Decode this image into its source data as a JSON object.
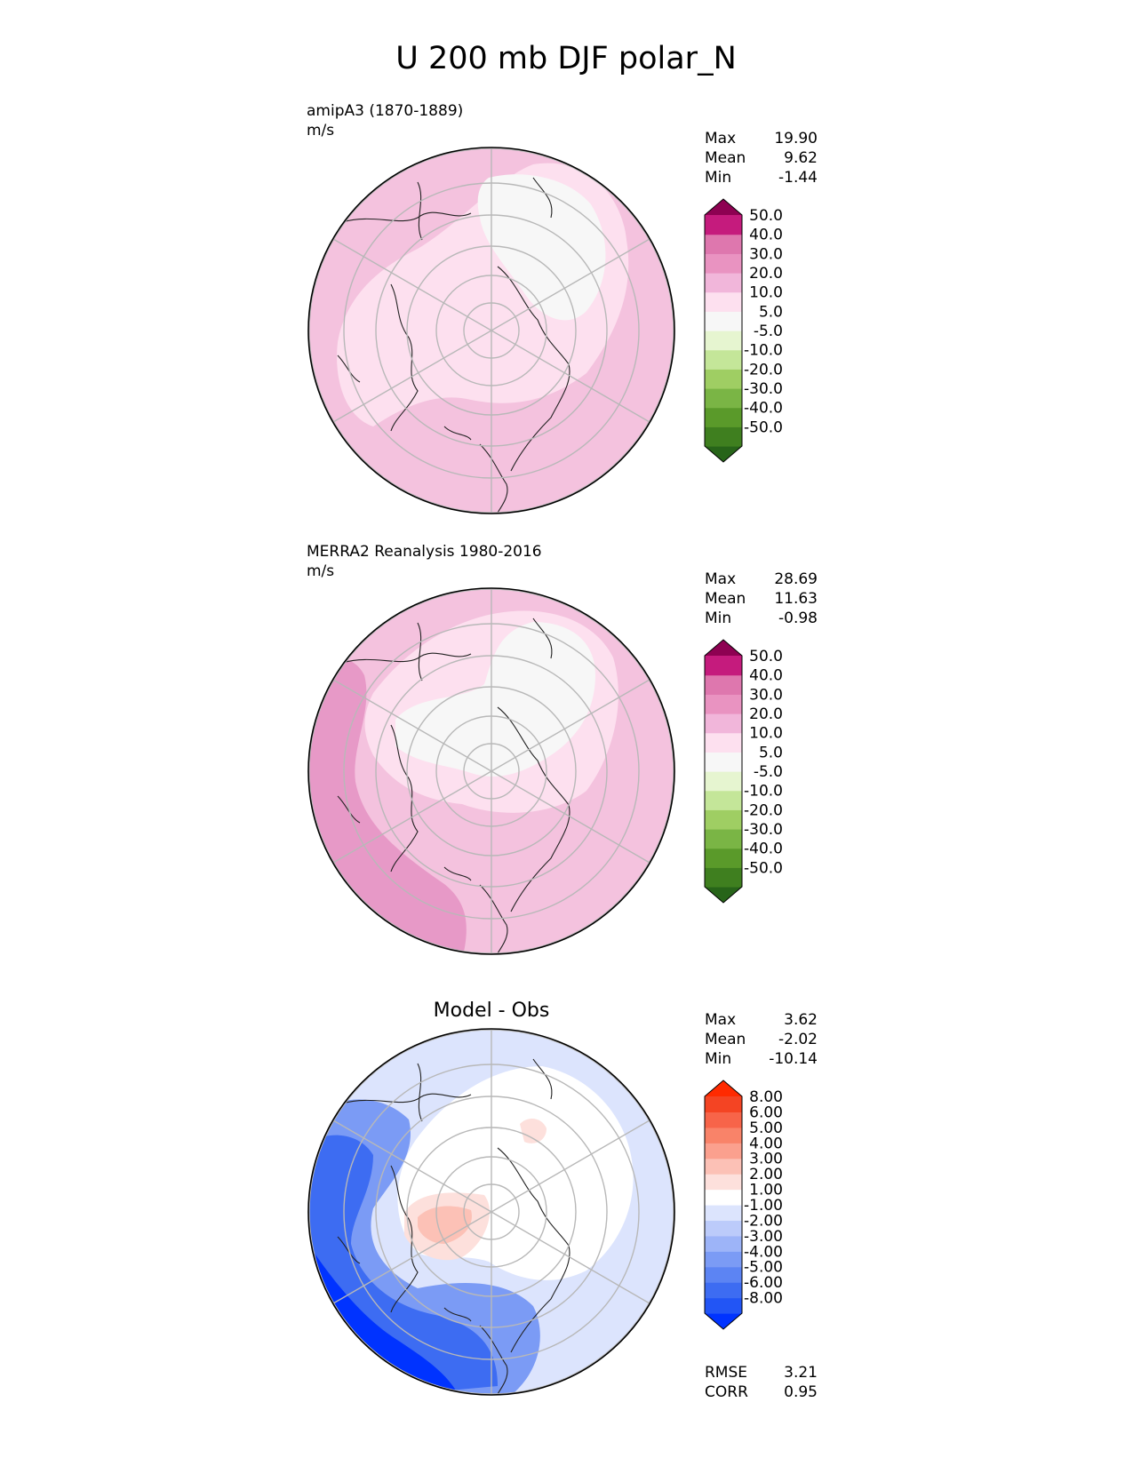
{
  "page_title": "U 200 mb DJF polar_N",
  "chart_data": [
    {
      "type": "heatmap",
      "projection": "north-polar-stereographic",
      "title": "",
      "dataset_label": "amipA3 (1870-1889)",
      "units": "m/s",
      "stats": [
        {
          "label": "Max",
          "value": "19.90"
        },
        {
          "label": "Mean",
          "value": "9.62"
        },
        {
          "label": "Min",
          "value": "-1.44"
        }
      ],
      "colorbar": {
        "extend": "both",
        "over_color": "#8e0152",
        "under_color": "#276419",
        "colors": [
          "#276419",
          "#3f7f1f",
          "#5a9a2a",
          "#7ab545",
          "#9fce63",
          "#c4e699",
          "#e6f5d0",
          "#f7f7f7",
          "#fde0ef",
          "#f1b6da",
          "#e993c1",
          "#de77ae",
          "#c51b7d",
          "#8e0152"
        ],
        "tick_labels": [
          "-50.0",
          "-40.0",
          "-30.0",
          "-20.0",
          "-10.0",
          "-5.0",
          "5.0",
          "10.0",
          "20.0",
          "30.0",
          "40.0",
          "50.0"
        ]
      },
      "field_fill": [
        {
          "range": "5 to 10",
          "color": "#fde0ef"
        },
        {
          "range": "10 to 20",
          "color": "#f4c2de"
        },
        {
          "range": "-5 to 5",
          "color": "#f7f7f7"
        }
      ]
    },
    {
      "type": "heatmap",
      "projection": "north-polar-stereographic",
      "title": "",
      "dataset_label": "MERRA2 Reanalysis 1980-2016",
      "units": "m/s",
      "stats": [
        {
          "label": "Max",
          "value": "28.69"
        },
        {
          "label": "Mean",
          "value": "11.63"
        },
        {
          "label": "Min",
          "value": "-0.98"
        }
      ],
      "colorbar": {
        "extend": "both",
        "over_color": "#8e0152",
        "under_color": "#276419",
        "colors": [
          "#276419",
          "#3f7f1f",
          "#5a9a2a",
          "#7ab545",
          "#9fce63",
          "#c4e699",
          "#e6f5d0",
          "#f7f7f7",
          "#fde0ef",
          "#f1b6da",
          "#e993c1",
          "#de77ae",
          "#c51b7d",
          "#8e0152"
        ],
        "tick_labels": [
          "-50.0",
          "-40.0",
          "-30.0",
          "-20.0",
          "-10.0",
          "-5.0",
          "5.0",
          "10.0",
          "20.0",
          "30.0",
          "40.0",
          "50.0"
        ]
      },
      "field_fill": [
        {
          "range": "5 to 10",
          "color": "#fde0ef"
        },
        {
          "range": "10 to 20",
          "color": "#f4c2de"
        },
        {
          "range": "20 to 30",
          "color": "#e799c7"
        },
        {
          "range": "-5 to 5",
          "color": "#f7f7f7"
        }
      ]
    },
    {
      "type": "heatmap",
      "projection": "north-polar-stereographic",
      "title": "Model - Obs",
      "dataset_label": "",
      "units": "",
      "stats": [
        {
          "label": "Max",
          "value": "3.62"
        },
        {
          "label": "Mean",
          "value": "-2.02"
        },
        {
          "label": "Min",
          "value": "-10.14"
        }
      ],
      "metrics": [
        {
          "label": "RMSE",
          "value": "3.21"
        },
        {
          "label": "CORR",
          "value": "0.95"
        }
      ],
      "colorbar": {
        "extend": "both",
        "over_color": "#ff2a00",
        "under_color": "#0033ff",
        "colors": [
          "#0033ff",
          "#2255f5",
          "#3d6cf2",
          "#5c84f3",
          "#7b9bf5",
          "#9db4f8",
          "#bccbfa",
          "#dce4fd",
          "#ffffff",
          "#fde0dc",
          "#fcc1b6",
          "#fba08e",
          "#f98369",
          "#f76449",
          "#f44423",
          "#ff2a00"
        ],
        "tick_labels": [
          "-8.00",
          "-6.00",
          "-5.00",
          "-4.00",
          "-3.00",
          "-2.00",
          "-1.00",
          "1.00",
          "2.00",
          "3.00",
          "4.00",
          "5.00",
          "6.00",
          "8.00"
        ]
      },
      "field_fill": [
        {
          "range": "-1 to 1",
          "color": "#ffffff"
        },
        {
          "range": "-2 to -1",
          "color": "#dce4fd"
        },
        {
          "range": "-4 to -3",
          "color": "#7b9bf5"
        },
        {
          "range": "-6 to -5",
          "color": "#3d6cf2"
        },
        {
          "range": "below -8",
          "color": "#0033ff"
        },
        {
          "range": "1 to 2",
          "color": "#fde0dc"
        },
        {
          "range": "2 to 3",
          "color": "#fcc1b6"
        }
      ]
    }
  ]
}
